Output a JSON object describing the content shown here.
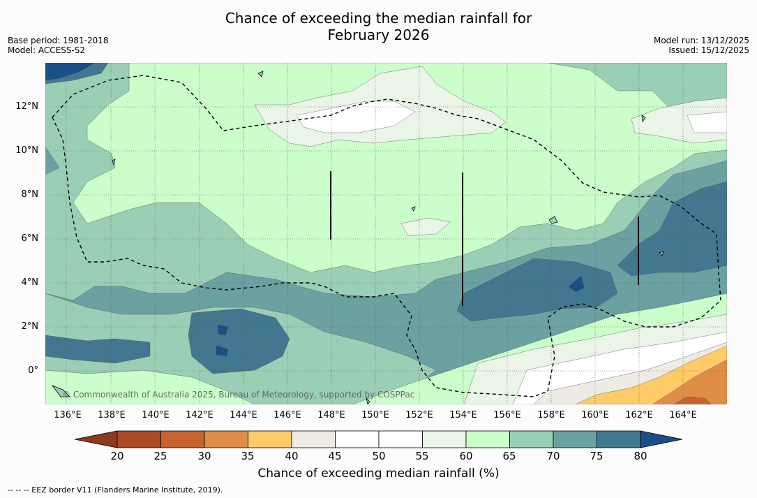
{
  "title_line1": "Chance of exceeding the median rainfall for",
  "title_line2": "February 2026",
  "base_period": "Base period: 1981-2018",
  "model": "Model: ACCESS-S2",
  "model_run": "Model run: 13/12/2025",
  "issued": "Issued: 15/12/2025",
  "copyright": "© Commonwealth of Australia 2025, Bureau of Meteorology, supported by COSPPac",
  "lat_labels": [
    "12°N",
    "10°N",
    "8°N",
    "6°N",
    "4°N",
    "2°N",
    "0°"
  ],
  "lon_labels": [
    "136°E",
    "138°E",
    "140°E",
    "142°E",
    "144°E",
    "146°E",
    "148°E",
    "150°E",
    "152°E",
    "154°E",
    "156°E",
    "158°E",
    "160°E",
    "162°E",
    "164°E"
  ],
  "colorbar": {
    "label": "Chance of exceeding median rainfall (%)",
    "ticks": [
      "20",
      "25",
      "30",
      "35",
      "40",
      "45",
      "50",
      "55",
      "60",
      "65",
      "70",
      "75",
      "80"
    ],
    "colors": [
      "#ad4a26",
      "#c8632f",
      "#de8f45",
      "#fecb66",
      "#eeebe5",
      "#ffffff",
      "#ffffff",
      "#eaf4e7",
      "#cbfeca",
      "#9acfb5",
      "#6ca1a2",
      "#42778f"
    ],
    "low_extend_color": "#8f3a20",
    "high_extend_color": "#1a4e86"
  },
  "footnote": "--  --  -- EEZ border V11 (Flanders Marine Institute, 2019).",
  "palette": {
    "c80": "#1a4e86",
    "c75": "#42778f",
    "c70": "#6ca1a2",
    "c65": "#9acfb5",
    "c60": "#cbfeca",
    "c55": "#eaf4e7",
    "c50": "#ffffff",
    "c40": "#eeebe5",
    "c35": "#fecb66",
    "c30": "#de8f45",
    "c25": "#c8632f"
  }
}
